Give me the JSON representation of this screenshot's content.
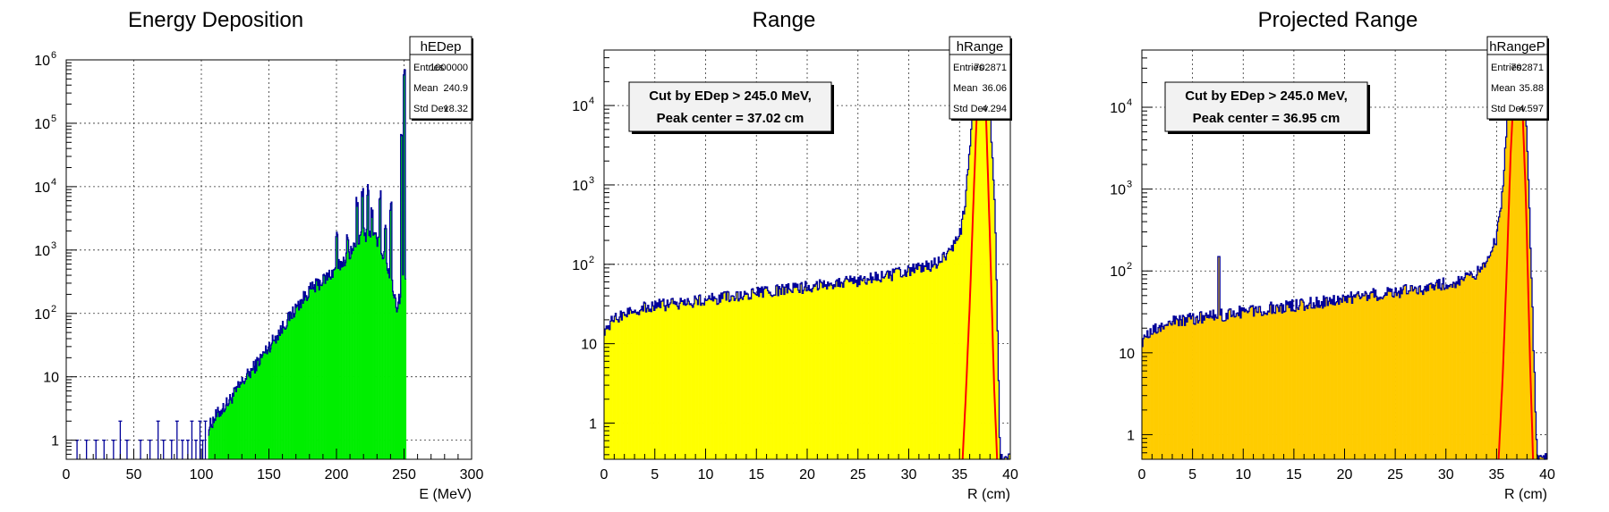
{
  "chart_data": [
    {
      "type": "histogram",
      "title": "Energy Deposition",
      "xlabel": "E (MeV)",
      "ylabel": "",
      "xlim": [
        0,
        300
      ],
      "ylim": [
        0.5,
        1000000
      ],
      "log_y": true,
      "grid": true,
      "x_ticks": [
        0,
        50,
        100,
        150,
        200,
        250,
        300
      ],
      "y_ticks": [
        {
          "value": 1,
          "label": "1"
        },
        {
          "value": 10,
          "label": "10"
        },
        {
          "value": 100,
          "label": "10",
          "sup": "2"
        },
        {
          "value": 1000,
          "label": "10",
          "sup": "3"
        },
        {
          "value": 10000,
          "label": "10",
          "sup": "4"
        },
        {
          "value": 100000,
          "label": "10",
          "sup": "5"
        },
        {
          "value": 1000000,
          "label": "10",
          "sup": "6"
        }
      ],
      "fill_color": "#00ee00",
      "line_color": "#000099",
      "stats": {
        "name": "hEDep",
        "rows": [
          {
            "label": "Entries",
            "value": "1000000"
          },
          {
            "label": "Mean",
            "value": "240.9"
          },
          {
            "label": "Std Dev",
            "value": "18.32"
          }
        ]
      },
      "envelope": [
        [
          105,
          1.5
        ],
        [
          110,
          2.3
        ],
        [
          120,
          4
        ],
        [
          130,
          8
        ],
        [
          140,
          15
        ],
        [
          150,
          30
        ],
        [
          160,
          60
        ],
        [
          170,
          120
        ],
        [
          180,
          230
        ],
        [
          190,
          330
        ],
        [
          200,
          500
        ],
        [
          210,
          900
        ],
        [
          220,
          1800
        ],
        [
          230,
          1500
        ],
        [
          240,
          400
        ],
        [
          245,
          120
        ],
        [
          250,
          400
        ]
      ],
      "peaks": [
        [
          200,
          2000
        ],
        [
          208,
          1800
        ],
        [
          215,
          7000
        ],
        [
          219,
          11000
        ],
        [
          223,
          12000
        ],
        [
          226,
          5000
        ],
        [
          232,
          10000
        ],
        [
          236,
          3000
        ],
        [
          240,
          6000
        ],
        [
          248,
          80000
        ],
        [
          250,
          700000
        ]
      ],
      "sparse_bins": [
        [
          8,
          1
        ],
        [
          15,
          1
        ],
        [
          22,
          1
        ],
        [
          28,
          1
        ],
        [
          35,
          1
        ],
        [
          40,
          2
        ],
        [
          45,
          1
        ],
        [
          55,
          1
        ],
        [
          62,
          1
        ],
        [
          68,
          2
        ],
        [
          72,
          1
        ],
        [
          78,
          1
        ],
        [
          82,
          2
        ],
        [
          86,
          1
        ],
        [
          90,
          1
        ],
        [
          93,
          2
        ],
        [
          96,
          1
        ],
        [
          99,
          2
        ],
        [
          101,
          1
        ],
        [
          103,
          2
        ]
      ]
    },
    {
      "type": "histogram",
      "title": "Range",
      "xlabel": "R (cm)",
      "ylabel": "",
      "xlim": [
        0,
        40
      ],
      "ylim": [
        0.35,
        50000
      ],
      "log_y": true,
      "grid": true,
      "x_ticks": [
        0,
        5,
        10,
        15,
        20,
        25,
        30,
        35,
        40
      ],
      "y_ticks": [
        {
          "value": 1,
          "label": "1"
        },
        {
          "value": 10,
          "label": "10"
        },
        {
          "value": 100,
          "label": "10",
          "sup": "2"
        },
        {
          "value": 1000,
          "label": "10",
          "sup": "3"
        },
        {
          "value": 10000,
          "label": "10",
          "sup": "4"
        }
      ],
      "fill_color": "#ffff00",
      "line_color": "#000099",
      "fit_color": "#ff0000",
      "stats": {
        "name": "hRange",
        "rows": [
          {
            "label": "Entries",
            "value": "702871"
          },
          {
            "label": "Mean",
            "value": "36.06"
          },
          {
            "label": "Std Dev",
            "value": "4.294"
          }
        ]
      },
      "annotation": [
        "Cut by EDep > 245.0 MeV,",
        "Peak center = 37.02 cm"
      ],
      "envelope": [
        [
          0,
          15
        ],
        [
          1,
          20
        ],
        [
          2,
          24
        ],
        [
          3,
          27
        ],
        [
          5,
          30
        ],
        [
          8,
          33
        ],
        [
          10,
          36
        ],
        [
          12,
          38
        ],
        [
          15,
          43
        ],
        [
          18,
          48
        ],
        [
          20,
          52
        ],
        [
          22,
          58
        ],
        [
          25,
          62
        ],
        [
          28,
          72
        ],
        [
          30,
          82
        ],
        [
          32,
          95
        ],
        [
          33,
          110
        ],
        [
          34,
          140
        ],
        [
          35,
          220
        ],
        [
          35.5,
          500
        ],
        [
          36,
          3000
        ],
        [
          36.5,
          15000
        ],
        [
          37,
          50000
        ],
        [
          37.5,
          50000
        ],
        [
          38,
          10000
        ],
        [
          38.5,
          500
        ],
        [
          39,
          0.35
        ]
      ],
      "fit_curve": [
        [
          35.3,
          0.35
        ],
        [
          35.6,
          2
        ],
        [
          36,
          30
        ],
        [
          36.4,
          800
        ],
        [
          36.7,
          8000
        ],
        [
          37,
          30000
        ],
        [
          37.3,
          30000
        ],
        [
          37.6,
          8000
        ],
        [
          38,
          200
        ],
        [
          38.4,
          3
        ],
        [
          38.7,
          0.35
        ]
      ]
    },
    {
      "type": "histogram",
      "title": "Projected Range",
      "xlabel": "R (cm)",
      "ylabel": "",
      "xlim": [
        0,
        40
      ],
      "ylim": [
        0.5,
        50000
      ],
      "log_y": true,
      "grid": true,
      "x_ticks": [
        0,
        5,
        10,
        15,
        20,
        25,
        30,
        35,
        40
      ],
      "y_ticks": [
        {
          "value": 1,
          "label": "1"
        },
        {
          "value": 10,
          "label": "10"
        },
        {
          "value": 100,
          "label": "10",
          "sup": "2"
        },
        {
          "value": 1000,
          "label": "10",
          "sup": "3"
        },
        {
          "value": 10000,
          "label": "10",
          "sup": "4"
        }
      ],
      "fill_color": "#ffcc00",
      "line_color": "#000099",
      "fit_color": "#ff0000",
      "stats": {
        "name": "hRangeP",
        "rows": [
          {
            "label": "Entries",
            "value": "702871"
          },
          {
            "label": "Mean",
            "value": "35.88"
          },
          {
            "label": "Std Dev",
            "value": "4.597"
          }
        ]
      },
      "annotation": [
        "Cut by EDep > 245.0 MeV,",
        "Peak center = 36.95 cm"
      ],
      "envelope": [
        [
          0,
          14
        ],
        [
          1,
          18
        ],
        [
          2,
          21
        ],
        [
          3,
          24
        ],
        [
          5,
          26
        ],
        [
          8,
          29
        ],
        [
          10,
          32
        ],
        [
          12,
          34
        ],
        [
          15,
          38
        ],
        [
          18,
          42
        ],
        [
          20,
          46
        ],
        [
          22,
          50
        ],
        [
          25,
          55
        ],
        [
          28,
          62
        ],
        [
          30,
          70
        ],
        [
          32,
          80
        ],
        [
          33,
          95
        ],
        [
          34,
          130
        ],
        [
          35,
          250
        ],
        [
          35.5,
          700
        ],
        [
          36,
          5000
        ],
        [
          36.5,
          30000
        ],
        [
          37,
          50000
        ],
        [
          37.5,
          40000
        ],
        [
          38,
          5000
        ],
        [
          38.5,
          50
        ],
        [
          39,
          0.5
        ]
      ],
      "spikes": [
        [
          7.6,
          150
        ]
      ],
      "fit_curve": [
        [
          35.2,
          0.5
        ],
        [
          35.6,
          5
        ],
        [
          36,
          100
        ],
        [
          36.4,
          3000
        ],
        [
          36.8,
          25000
        ],
        [
          37.1,
          40000
        ],
        [
          37.5,
          15000
        ],
        [
          37.9,
          700
        ],
        [
          38.3,
          8
        ],
        [
          38.6,
          0.5
        ]
      ]
    }
  ]
}
